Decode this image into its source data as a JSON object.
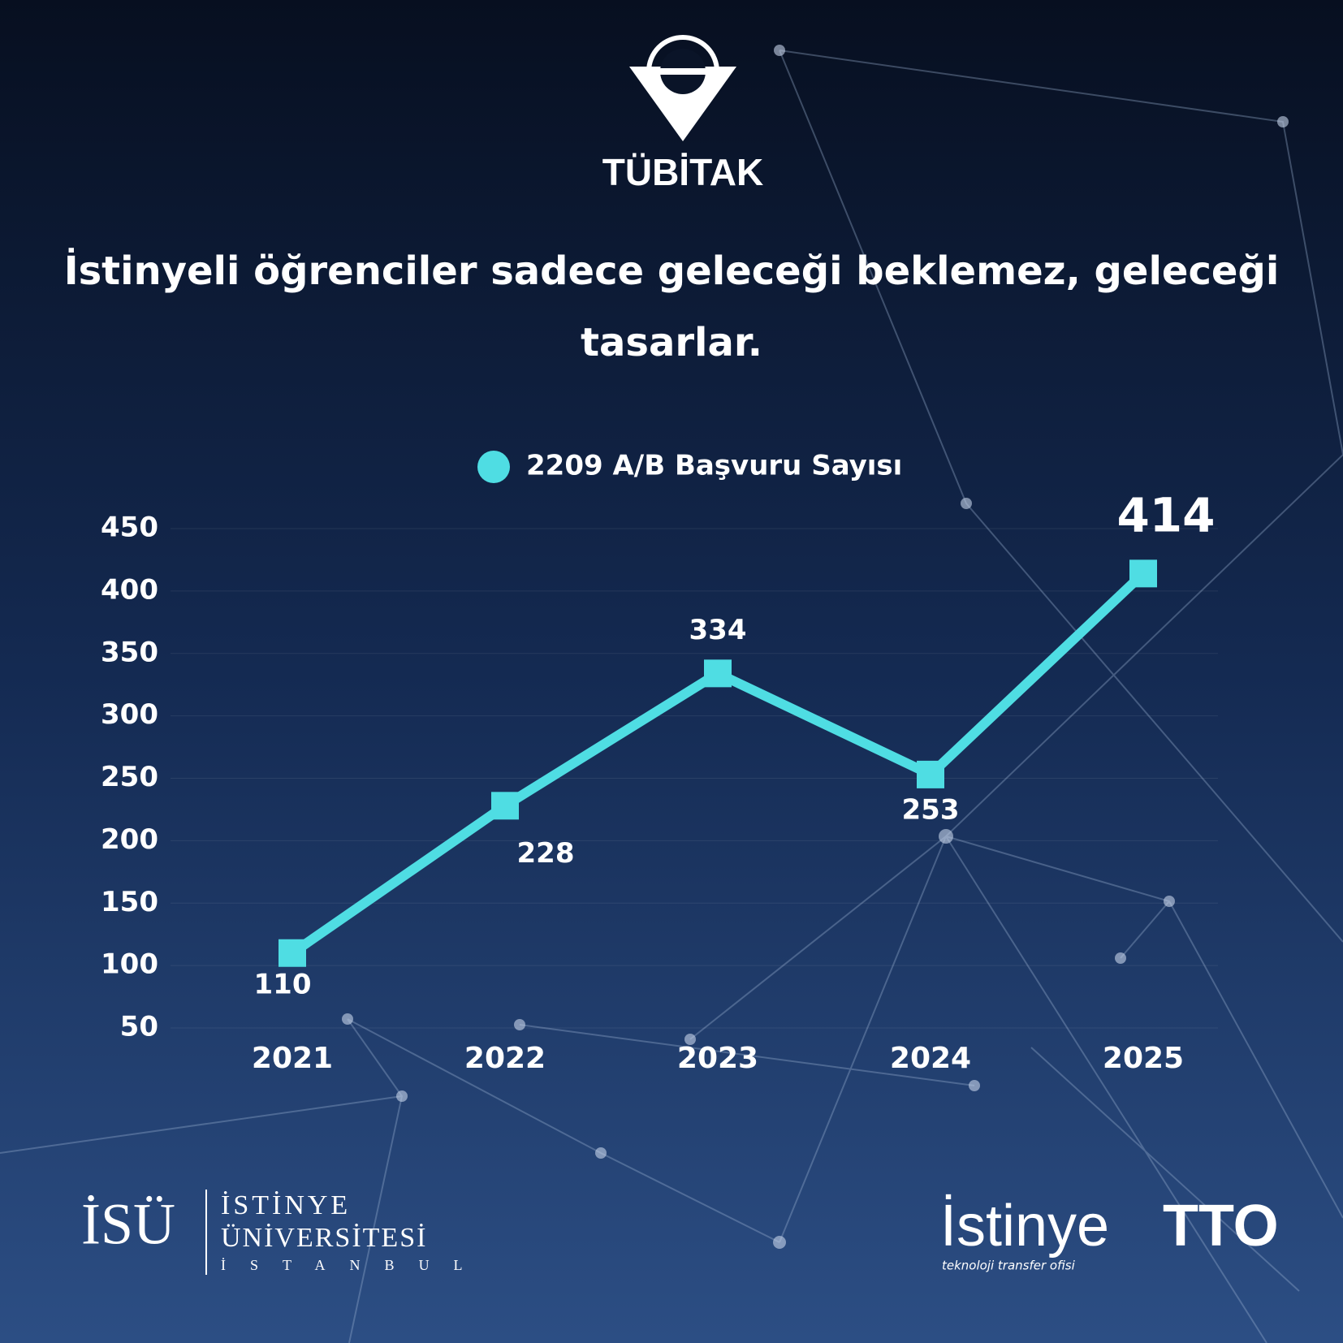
{
  "header": {
    "logo_text": "TÜBİTAK"
  },
  "chart_data": {
    "type": "line",
    "title": "İstinyeli öğrenciler sadece geleceği beklemez, geleceği tasarlar.",
    "categories": [
      "2021",
      "2022",
      "2023",
      "2024",
      "2025"
    ],
    "series": [
      {
        "name": "2209 A/B Başvuru Sayısı",
        "color": "#4fdde3",
        "values": [
          110,
          228,
          334,
          253,
          414
        ]
      }
    ],
    "ylim": [
      50,
      450
    ],
    "yticks": [
      50,
      100,
      150,
      200,
      250,
      300,
      350,
      400,
      450
    ],
    "grid": true,
    "legend": "top"
  },
  "footer": {
    "left": {
      "mark": "İSÜ",
      "line1": "İSTİNYE",
      "line2": "ÜNİVERSİTESİ",
      "line3": "İSTANBUL"
    },
    "right": {
      "word": "İstinye",
      "bold": "TTO",
      "tagline": "teknoloji transfer ofisi"
    }
  }
}
